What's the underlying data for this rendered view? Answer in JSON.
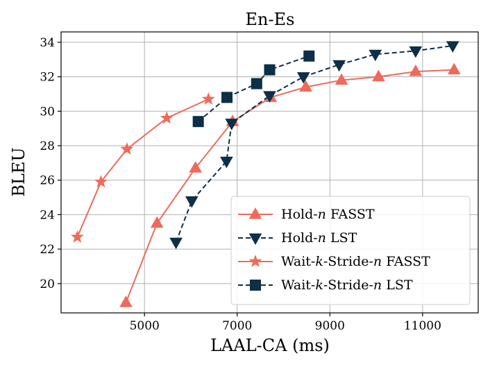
{
  "chart_data": {
    "type": "line",
    "title": "En-Es",
    "xlabel": "LAAL-CA (ms)",
    "ylabel": "BLEU",
    "xlim": [
      3200,
      12200
    ],
    "ylim": [
      18.3,
      34.6
    ],
    "xticks": [
      5000,
      7000,
      9000,
      11000
    ],
    "xtick_labels": [
      "5000",
      "7000",
      "9000",
      "11000"
    ],
    "yticks": [
      20,
      22,
      24,
      26,
      28,
      30,
      32,
      34
    ],
    "ytick_labels": [
      "20",
      "22",
      "24",
      "26",
      "28",
      "30",
      "32",
      "34"
    ],
    "grid": true,
    "legend_position": "bottom-right",
    "series": [
      {
        "name": "Hold-n FASST",
        "label_parts": [
          "Hold-",
          "n",
          " FASST"
        ],
        "color": "#ee6a5a",
        "marker": "triangle-up",
        "line_style": "solid",
        "x": [
          4600,
          5270,
          6100,
          6900,
          7720,
          8480,
          9250,
          10050,
          10850,
          11680
        ],
        "y": [
          18.9,
          23.5,
          26.7,
          29.4,
          30.8,
          31.4,
          31.8,
          32.0,
          32.3,
          32.4
        ]
      },
      {
        "name": "Hold-n LST",
        "label_parts": [
          "Hold-",
          "n",
          " LST"
        ],
        "color": "#0d2f47",
        "marker": "triangle-down",
        "line_style": "dashed",
        "x": [
          5680,
          6020,
          6770,
          6880,
          7700,
          8430,
          9200,
          9980,
          10850,
          11650
        ],
        "y": [
          22.4,
          24.8,
          27.1,
          29.3,
          30.9,
          32.0,
          32.7,
          33.3,
          33.5,
          33.8
        ]
      },
      {
        "name": "Wait-k-Stride-n FASST",
        "label_parts": [
          "Wait-",
          "k",
          "-Stride-",
          "n",
          " FASST"
        ],
        "color": "#ee6a5a",
        "marker": "star",
        "line_style": "solid",
        "x": [
          3550,
          4060,
          4620,
          5480,
          6380
        ],
        "y": [
          22.7,
          25.9,
          27.8,
          29.6,
          30.7
        ]
      },
      {
        "name": "Wait-k-Stride-n LST",
        "label_parts": [
          "Wait-",
          "k",
          "-Stride-",
          "n",
          " LST"
        ],
        "color": "#0d2f47",
        "marker": "square",
        "line_style": "dashed",
        "x": [
          6160,
          6780,
          7420,
          7700,
          8550
        ],
        "y": [
          29.4,
          30.8,
          31.6,
          32.4,
          33.2
        ]
      }
    ]
  }
}
